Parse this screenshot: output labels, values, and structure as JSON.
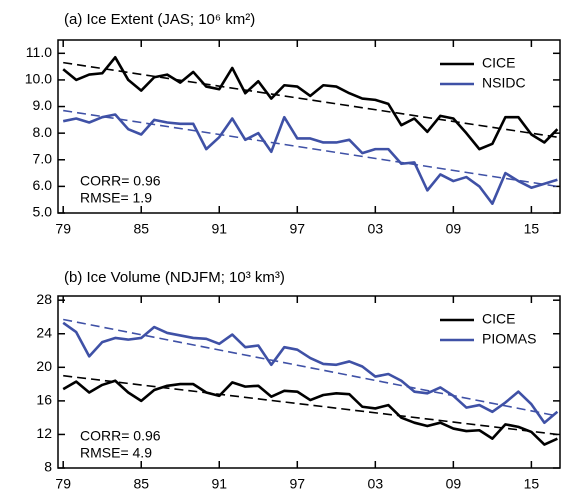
{
  "chart_data": [
    {
      "type": "line",
      "title": "(a) Ice Extent (JAS; 10⁶ km²)",
      "x": [
        1979,
        1980,
        1981,
        1982,
        1983,
        1984,
        1985,
        1986,
        1987,
        1988,
        1989,
        1990,
        1991,
        1992,
        1993,
        1994,
        1995,
        1996,
        1997,
        1998,
        1999,
        2000,
        2001,
        2002,
        2003,
        2004,
        2005,
        2006,
        2007,
        2008,
        2009,
        2010,
        2011,
        2012,
        2013,
        2014,
        2015,
        2016,
        2017
      ],
      "series": [
        {
          "name": "CICE",
          "color": "#000000",
          "values": [
            10.4,
            10.0,
            10.2,
            10.25,
            10.85,
            10.0,
            9.6,
            10.1,
            10.2,
            9.9,
            10.3,
            9.75,
            9.65,
            10.45,
            9.5,
            9.95,
            9.3,
            9.8,
            9.75,
            9.4,
            9.8,
            9.75,
            9.5,
            9.3,
            9.25,
            9.1,
            8.3,
            8.55,
            8.05,
            8.65,
            8.55,
            8.0,
            7.4,
            7.6,
            8.6,
            8.6,
            7.95,
            7.65,
            8.15
          ]
        },
        {
          "name": "NSIDC",
          "color": "#3f51a6",
          "values": [
            8.45,
            8.55,
            8.4,
            8.6,
            8.7,
            8.15,
            7.95,
            8.5,
            8.4,
            8.35,
            8.35,
            7.4,
            7.85,
            8.55,
            7.75,
            8.0,
            7.3,
            8.6,
            7.8,
            7.8,
            7.65,
            7.65,
            7.75,
            7.25,
            7.4,
            7.4,
            6.85,
            6.9,
            5.85,
            6.45,
            6.2,
            6.35,
            6.0,
            5.35,
            6.5,
            6.2,
            5.95,
            6.1,
            6.25
          ]
        }
      ],
      "trends": [
        {
          "color": "#000000",
          "x": [
            1979,
            2017
          ],
          "values": [
            10.65,
            7.85
          ]
        },
        {
          "color": "#3f51a6",
          "x": [
            1979,
            2017
          ],
          "values": [
            8.85,
            6.0
          ]
        }
      ],
      "annotations": [
        "CORR= 0.96",
        "RMSE= 1.9"
      ],
      "legend": "upper right",
      "xlim": [
        1978.6,
        2017.2
      ],
      "xticks": [
        {
          "value": 1979,
          "label": "79"
        },
        {
          "value": 1985,
          "label": "85"
        },
        {
          "value": 1991,
          "label": "91"
        },
        {
          "value": 1997,
          "label": "97"
        },
        {
          "value": 2003,
          "label": "03"
        },
        {
          "value": 2009,
          "label": "09"
        },
        {
          "value": 2015,
          "label": "15"
        }
      ],
      "ylim": [
        5,
        11.5
      ],
      "yticks": [
        {
          "value": 5,
          "label": "5.0"
        },
        {
          "value": 6,
          "label": "6.0"
        },
        {
          "value": 7,
          "label": "7.0"
        },
        {
          "value": 8,
          "label": "8.0"
        },
        {
          "value": 9,
          "label": "9.0"
        },
        {
          "value": 10,
          "label": "10.0"
        },
        {
          "value": 11,
          "label": "11.0"
        }
      ]
    },
    {
      "type": "line",
      "title": "(b) Ice Volume (NDJFM; 10³ km³)",
      "x": [
        1979,
        1980,
        1981,
        1982,
        1983,
        1984,
        1985,
        1986,
        1987,
        1988,
        1989,
        1990,
        1991,
        1992,
        1993,
        1994,
        1995,
        1996,
        1997,
        1998,
        1999,
        2000,
        2001,
        2002,
        2003,
        2004,
        2005,
        2006,
        2007,
        2008,
        2009,
        2010,
        2011,
        2012,
        2013,
        2014,
        2015,
        2016,
        2017
      ],
      "series": [
        {
          "name": "CICE",
          "color": "#000000",
          "values": [
            17.4,
            18.3,
            17.0,
            17.9,
            18.4,
            17.0,
            16.0,
            17.3,
            17.8,
            18.0,
            18.0,
            17.0,
            16.6,
            18.2,
            17.7,
            17.8,
            16.5,
            17.2,
            17.1,
            16.1,
            16.7,
            16.9,
            16.8,
            15.3,
            15.1,
            15.5,
            14.0,
            13.4,
            13.0,
            13.4,
            12.7,
            12.4,
            12.5,
            11.5,
            13.2,
            12.9,
            12.3,
            10.8,
            11.5
          ]
        },
        {
          "name": "PIOMAS",
          "color": "#3f51a6",
          "values": [
            25.3,
            24.2,
            21.3,
            23.0,
            23.5,
            23.3,
            23.5,
            24.8,
            24.1,
            23.8,
            23.5,
            23.4,
            22.8,
            23.9,
            22.4,
            22.6,
            20.3,
            22.4,
            22.1,
            21.1,
            20.4,
            20.3,
            20.7,
            20.1,
            18.9,
            19.2,
            18.4,
            17.1,
            16.9,
            17.6,
            16.6,
            15.2,
            15.5,
            14.7,
            15.8,
            17.1,
            15.6,
            13.4,
            14.7
          ]
        }
      ],
      "trends": [
        {
          "color": "#000000",
          "x": [
            1979,
            2017
          ],
          "values": [
            19.0,
            12.0
          ]
        },
        {
          "color": "#3f51a6",
          "x": [
            1979,
            2017
          ],
          "values": [
            25.7,
            14.2
          ]
        }
      ],
      "annotations": [
        "CORR= 0.96",
        "RMSE= 4.9"
      ],
      "legend": "upper right",
      "xlim": [
        1978.6,
        2017.2
      ],
      "xticks": [
        {
          "value": 1979,
          "label": "79"
        },
        {
          "value": 1985,
          "label": "85"
        },
        {
          "value": 1991,
          "label": "91"
        },
        {
          "value": 1997,
          "label": "97"
        },
        {
          "value": 2003,
          "label": "03"
        },
        {
          "value": 2009,
          "label": "09"
        },
        {
          "value": 2015,
          "label": "15"
        }
      ],
      "ylim": [
        8,
        28.5
      ],
      "yticks": [
        8,
        12,
        16,
        20,
        24,
        28
      ]
    }
  ]
}
